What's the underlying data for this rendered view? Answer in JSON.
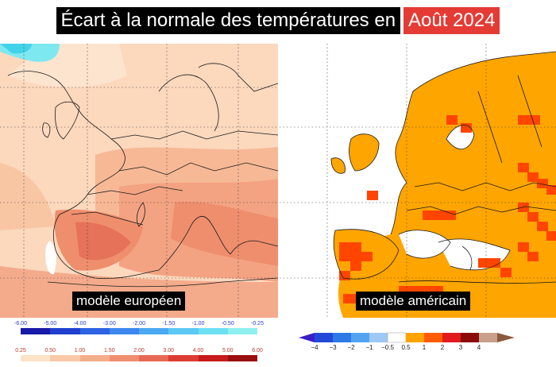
{
  "title": {
    "main": "Écart à la normale des températures en",
    "highlight": "Août 2024"
  },
  "panels": {
    "european": {
      "label": "modèle européen"
    },
    "american": {
      "label": "modèle américain"
    }
  },
  "legend_european": {
    "negative_ticks": [
      "-6.00",
      "-5.00",
      "-4.00",
      "-3.00",
      "-2.00",
      "-1.50",
      "-1.00",
      "-0.50",
      "-0.25"
    ],
    "positive_ticks": [
      "0.25",
      "0.50",
      "1.00",
      "1.50",
      "2.00",
      "3.00",
      "4.00",
      "5.00",
      "6.00"
    ],
    "negative_colors": [
      "#1a1aa8",
      "#1f3fd0",
      "#2d63e3",
      "#3c87ee",
      "#4aa9f2",
      "#5cc9f5",
      "#6ee0f4",
      "#8ff0f0"
    ],
    "positive_colors": [
      "#fde3c8",
      "#f9c9a8",
      "#f4ad8b",
      "#ef8f70",
      "#e86a54",
      "#dc3d32",
      "#c71b1b",
      "#9c0f0f"
    ]
  },
  "legend_american": {
    "labels": [
      "−4",
      "−3",
      "−2",
      "−1",
      "−0.5",
      "0.5",
      "1",
      "2",
      "3",
      "4"
    ],
    "colors": [
      "#3a1fc4",
      "#2449d8",
      "#2d79e8",
      "#52a4f1",
      "#9dc9f4",
      "#ffffff",
      "#ffa300",
      "#ff5c00",
      "#e31a1c",
      "#8c0a0a",
      "#c9a08c",
      "#8a5a3c"
    ]
  }
}
